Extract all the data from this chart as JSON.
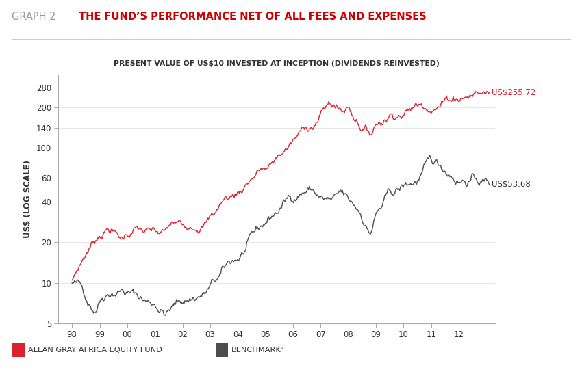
{
  "title_left": "GRAPH 2",
  "title_right": "THE FUND’S PERFORMANCE NET OF ALL FEES AND EXPENSES",
  "subtitle": "PRESENT VALUE OF US$10 INVESTED AT INCEPTION (DIVIDENDS REINVESTED)",
  "ylabel": "US$ (LOG SCALE)",
  "xlabel_ticks": [
    "98",
    "99",
    "00",
    "01",
    "02",
    "03",
    "04",
    "05",
    "06",
    "07",
    "08",
    "09",
    "10",
    "11",
    "12"
  ],
  "yticks": [
    5,
    10,
    20,
    40,
    60,
    100,
    140,
    200,
    280
  ],
  "ytick_labels": [
    "5",
    "10",
    "20",
    "40",
    "60",
    "100",
    "140",
    "200",
    "280"
  ],
  "ylim": [
    5,
    350
  ],
  "xlim_left": 1997.5,
  "xlim_right": 2013.3,
  "fund_color": "#d9232d",
  "benchmark_color": "#4d4d4d",
  "fund_end_label": "US$255.72",
  "benchmark_end_label": "US$53.68",
  "legend_fund": "ALLAN GRAY AFRICA EQUITY FUND¹",
  "legend_benchmark": "BENCHMARK²",
  "background_color": "#ffffff",
  "title_color": "#cc0000",
  "title_left_color": "#999999",
  "fund_keypoints": [
    [
      1998.0,
      10.5
    ],
    [
      1998.3,
      14.0
    ],
    [
      1998.6,
      18.0
    ],
    [
      1998.9,
      22.0
    ],
    [
      1999.1,
      25.0
    ],
    [
      1999.4,
      27.0
    ],
    [
      1999.6,
      24.0
    ],
    [
      1999.8,
      22.0
    ],
    [
      2000.0,
      24.0
    ],
    [
      2000.3,
      26.0
    ],
    [
      2000.6,
      24.0
    ],
    [
      2000.9,
      22.0
    ],
    [
      2001.1,
      20.5
    ],
    [
      2001.4,
      20.0
    ],
    [
      2001.6,
      22.0
    ],
    [
      2001.9,
      21.0
    ],
    [
      2002.0,
      20.0
    ],
    [
      2002.3,
      22.0
    ],
    [
      2002.6,
      24.0
    ],
    [
      2002.9,
      26.0
    ],
    [
      2003.2,
      30.0
    ],
    [
      2003.5,
      36.0
    ],
    [
      2003.8,
      38.0
    ],
    [
      2004.1,
      42.0
    ],
    [
      2004.3,
      48.0
    ],
    [
      2004.6,
      56.0
    ],
    [
      2004.9,
      62.0
    ],
    [
      2005.1,
      60.0
    ],
    [
      2005.3,
      65.0
    ],
    [
      2005.6,
      75.0
    ],
    [
      2005.9,
      85.0
    ],
    [
      2006.2,
      95.0
    ],
    [
      2006.5,
      108.0
    ],
    [
      2006.8,
      120.0
    ],
    [
      2007.0,
      135.0
    ],
    [
      2007.2,
      150.0
    ],
    [
      2007.4,
      158.0
    ],
    [
      2007.5,
      155.0
    ],
    [
      2007.6,
      148.0
    ],
    [
      2007.8,
      138.0
    ],
    [
      2007.9,
      143.0
    ],
    [
      2008.0,
      148.0
    ],
    [
      2008.1,
      140.0
    ],
    [
      2008.2,
      130.0
    ],
    [
      2008.4,
      120.0
    ],
    [
      2008.5,
      112.0
    ],
    [
      2008.6,
      108.0
    ],
    [
      2008.7,
      102.0
    ],
    [
      2008.8,
      100.0
    ],
    [
      2008.9,
      108.0
    ],
    [
      2009.0,
      118.0
    ],
    [
      2009.2,
      128.0
    ],
    [
      2009.4,
      138.0
    ],
    [
      2009.6,
      150.0
    ],
    [
      2009.8,
      158.0
    ],
    [
      2010.0,
      162.0
    ],
    [
      2010.2,
      168.0
    ],
    [
      2010.4,
      175.0
    ],
    [
      2010.6,
      180.0
    ],
    [
      2010.8,
      188.0
    ],
    [
      2011.0,
      195.0
    ],
    [
      2011.2,
      200.0
    ],
    [
      2011.4,
      210.0
    ],
    [
      2011.6,
      220.0
    ],
    [
      2011.8,
      230.0
    ],
    [
      2012.0,
      238.0
    ],
    [
      2012.2,
      245.0
    ],
    [
      2012.4,
      250.0
    ],
    [
      2012.6,
      255.0
    ],
    [
      2012.8,
      258.0
    ],
    [
      2013.0,
      255.0
    ],
    [
      2013.1,
      255.72
    ]
  ],
  "benchmark_keypoints": [
    [
      1998.0,
      10.0
    ],
    [
      1998.2,
      9.5
    ],
    [
      1998.4,
      8.5
    ],
    [
      1998.6,
      7.5
    ],
    [
      1998.8,
      7.0
    ],
    [
      1999.0,
      8.5
    ],
    [
      1999.2,
      10.0
    ],
    [
      1999.4,
      11.0
    ],
    [
      1999.6,
      11.5
    ],
    [
      1999.8,
      12.0
    ],
    [
      2000.0,
      11.5
    ],
    [
      2000.2,
      11.0
    ],
    [
      2000.4,
      10.5
    ],
    [
      2000.6,
      10.0
    ],
    [
      2000.8,
      9.5
    ],
    [
      2001.0,
      9.5
    ],
    [
      2001.2,
      9.0
    ],
    [
      2001.4,
      8.5
    ],
    [
      2001.6,
      9.0
    ],
    [
      2001.8,
      9.5
    ],
    [
      2002.0,
      10.0
    ],
    [
      2002.2,
      10.5
    ],
    [
      2002.4,
      11.0
    ],
    [
      2002.6,
      11.5
    ],
    [
      2002.8,
      12.0
    ],
    [
      2003.0,
      13.0
    ],
    [
      2003.2,
      14.0
    ],
    [
      2003.4,
      15.0
    ],
    [
      2003.6,
      16.5
    ],
    [
      2003.8,
      18.0
    ],
    [
      2004.0,
      19.0
    ],
    [
      2004.2,
      21.0
    ],
    [
      2004.4,
      23.0
    ],
    [
      2004.6,
      25.0
    ],
    [
      2004.8,
      27.0
    ],
    [
      2005.0,
      30.0
    ],
    [
      2005.2,
      33.0
    ],
    [
      2005.4,
      36.0
    ],
    [
      2005.6,
      40.0
    ],
    [
      2005.8,
      44.0
    ],
    [
      2006.0,
      47.0
    ],
    [
      2006.2,
      52.0
    ],
    [
      2006.4,
      56.0
    ],
    [
      2006.6,
      58.0
    ],
    [
      2006.8,
      55.0
    ],
    [
      2007.0,
      50.0
    ],
    [
      2007.2,
      47.0
    ],
    [
      2007.4,
      45.0
    ],
    [
      2007.6,
      44.0
    ],
    [
      2007.7,
      46.0
    ],
    [
      2007.8,
      44.0
    ],
    [
      2007.9,
      42.0
    ],
    [
      2008.0,
      38.0
    ],
    [
      2008.2,
      35.0
    ],
    [
      2008.4,
      32.0
    ],
    [
      2008.6,
      28.0
    ],
    [
      2008.7,
      25.0
    ],
    [
      2008.8,
      24.0
    ],
    [
      2008.9,
      28.0
    ],
    [
      2009.0,
      32.0
    ],
    [
      2009.2,
      36.0
    ],
    [
      2009.4,
      40.0
    ],
    [
      2009.6,
      42.0
    ],
    [
      2009.8,
      44.0
    ],
    [
      2010.0,
      46.0
    ],
    [
      2010.2,
      48.0
    ],
    [
      2010.4,
      50.0
    ],
    [
      2010.6,
      55.0
    ],
    [
      2010.8,
      60.0
    ],
    [
      2011.0,
      62.0
    ],
    [
      2011.2,
      60.0
    ],
    [
      2011.4,
      58.0
    ],
    [
      2011.6,
      56.0
    ],
    [
      2011.8,
      55.0
    ],
    [
      2012.0,
      54.0
    ],
    [
      2012.2,
      55.0
    ],
    [
      2012.4,
      57.0
    ],
    [
      2012.6,
      56.0
    ],
    [
      2012.8,
      55.0
    ],
    [
      2013.0,
      54.0
    ],
    [
      2013.1,
      53.68
    ]
  ]
}
